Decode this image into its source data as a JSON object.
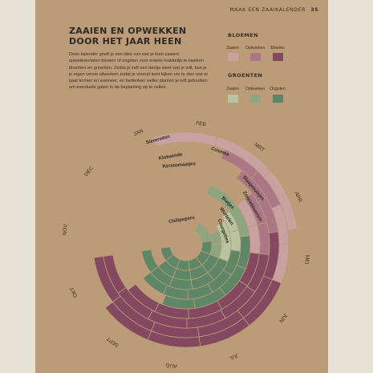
{
  "header": {
    "title": "MAAK EEN ZAAIKALENDER",
    "page_number": "35"
  },
  "title": "ZAAIEN EN OPWEKKEN DOOR HET JAAR HEEN",
  "intro": "Deze kalender geeft je een idee van wat je kunt zaaien/ opwekken/laten bloeien of oogsten voor enkele makkelijk te kweken bloemen en groenten. Zodra je zelf een beetje weet wat je wilt, kun je je eigen versie uitwerken zodat je vooruit kunt kijken om te zien wat er gaat komen en wanneer, en bedenken welke planten je wilt gebruiken om eventuele gaten in de beplanting op te vullen.",
  "legend": {
    "flowers": {
      "title": "BLOEMEN",
      "labels": [
        "Zaaien",
        "Opkweken",
        "Bloeien"
      ],
      "colors": [
        "#c9a1a0",
        "#ab7786",
        "#844861"
      ]
    },
    "vegetables": {
      "title": "GROENTEN",
      "labels": [
        "Zaaien",
        "Opkweken",
        "Oogsten"
      ],
      "colors": [
        "#b8c3a0",
        "#8ea582",
        "#5e8767"
      ]
    }
  },
  "months": [
    "JAN",
    "FEB",
    "MRT",
    "APR",
    "MEI",
    "JUN",
    "JUL",
    "AUG",
    "SEPT",
    "OKT",
    "NOV",
    "DEC"
  ],
  "plants": [
    "Siererwten",
    "Cosmea",
    "Klokwinde",
    "Slaapmutsjes",
    "Zonnebloemen",
    "Kerstomaatjes",
    "Bietjes",
    "Wortelen",
    "Courgettes",
    "Chilipepers"
  ]
}
